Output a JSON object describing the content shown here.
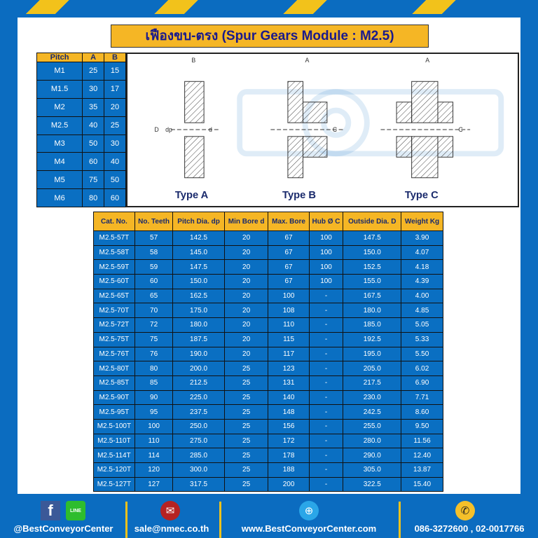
{
  "title": "เฟืองขบ-ตรง (Spur Gears Module : M2.5)",
  "pitch_table": {
    "headers": [
      "Pitch",
      "A",
      "B"
    ],
    "rows": [
      [
        "M1",
        "25",
        "15"
      ],
      [
        "M1.5",
        "30",
        "17"
      ],
      [
        "M2",
        "35",
        "20"
      ],
      [
        "M2.5",
        "40",
        "25"
      ],
      [
        "M3",
        "50",
        "30"
      ],
      [
        "M4",
        "60",
        "40"
      ],
      [
        "M5",
        "75",
        "50"
      ],
      [
        "M6",
        "80",
        "60"
      ]
    ]
  },
  "diagram": {
    "types": [
      "Type A",
      "Type B",
      "Type C"
    ],
    "labels": {
      "A": "A",
      "B": "B",
      "C": "C",
      "D": "D",
      "dp": "dp",
      "d": "d"
    },
    "watermark": "BEST CONVEYOR CENTER"
  },
  "main_table": {
    "headers": [
      "Cat. No.",
      "No. Teeth",
      "Pitch Dia. dp",
      "Min Bore d",
      "Max. Bore",
      "Hub Ø C",
      "Outside Dia. D",
      "Weight Kg"
    ],
    "rows": [
      [
        "M2.5-57T",
        "57",
        "142.5",
        "20",
        "67",
        "100",
        "147.5",
        "3.90"
      ],
      [
        "M2.5-58T",
        "58",
        "145.0",
        "20",
        "67",
        "100",
        "150.0",
        "4.07"
      ],
      [
        "M2.5-59T",
        "59",
        "147.5",
        "20",
        "67",
        "100",
        "152.5",
        "4.18"
      ],
      [
        "M2.5-60T",
        "60",
        "150.0",
        "20",
        "67",
        "100",
        "155.0",
        "4.39"
      ],
      [
        "M2.5-65T",
        "65",
        "162.5",
        "20",
        "100",
        "-",
        "167.5",
        "4.00"
      ],
      [
        "M2.5-70T",
        "70",
        "175.0",
        "20",
        "108",
        "-",
        "180.0",
        "4.85"
      ],
      [
        "M2.5-72T",
        "72",
        "180.0",
        "20",
        "110",
        "-",
        "185.0",
        "5.05"
      ],
      [
        "M2.5-75T",
        "75",
        "187.5",
        "20",
        "115",
        "-",
        "192.5",
        "5.33"
      ],
      [
        "M2.5-76T",
        "76",
        "190.0",
        "20",
        "117",
        "-",
        "195.0",
        "5.50"
      ],
      [
        "M2.5-80T",
        "80",
        "200.0",
        "25",
        "123",
        "-",
        "205.0",
        "6.02"
      ],
      [
        "M2.5-85T",
        "85",
        "212.5",
        "25",
        "131",
        "-",
        "217.5",
        "6.90"
      ],
      [
        "M2.5-90T",
        "90",
        "225.0",
        "25",
        "140",
        "-",
        "230.0",
        "7.71"
      ],
      [
        "M2.5-95T",
        "95",
        "237.5",
        "25",
        "148",
        "-",
        "242.5",
        "8.60"
      ],
      [
        "M2.5-100T",
        "100",
        "250.0",
        "25",
        "156",
        "-",
        "255.0",
        "9.50"
      ],
      [
        "M2.5-110T",
        "110",
        "275.0",
        "25",
        "172",
        "-",
        "280.0",
        "11.56"
      ],
      [
        "M2.5-114T",
        "114",
        "285.0",
        "25",
        "178",
        "-",
        "290.0",
        "12.40"
      ],
      [
        "M2.5-120T",
        "120",
        "300.0",
        "25",
        "188",
        "-",
        "305.0",
        "13.87"
      ],
      [
        "M2.5-127T",
        "127",
        "317.5",
        "25",
        "200",
        "-",
        "322.5",
        "15.40"
      ]
    ]
  },
  "footer": {
    "social": "@BestConveyorCenter",
    "line_icon_text": "LINE",
    "email": "sale@nmec.co.th",
    "website": "www.BestConveyorCenter.com",
    "phone": "086-3272600 , 02-0017766"
  },
  "colors": {
    "background": "#0b6cc0",
    "header": "#f5b625",
    "cell": "#0a6fc2"
  }
}
